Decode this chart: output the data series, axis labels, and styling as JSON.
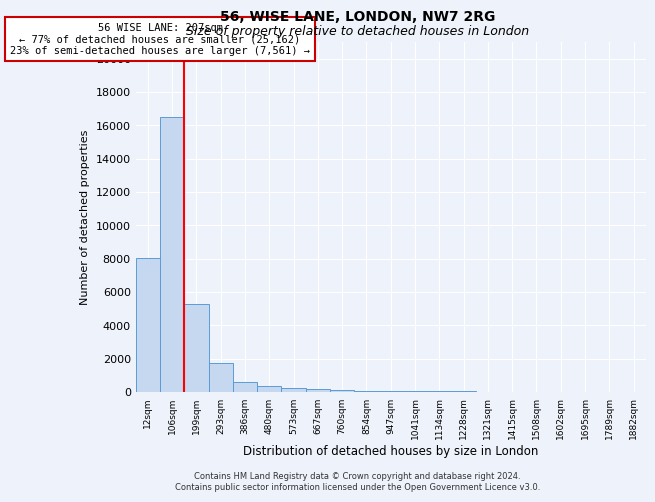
{
  "title1": "56, WISE LANE, LONDON, NW7 2RG",
  "title2": "Size of property relative to detached houses in London",
  "xlabel": "Distribution of detached houses by size in London",
  "ylabel": "Number of detached properties",
  "bin_labels": [
    "12sqm",
    "106sqm",
    "199sqm",
    "293sqm",
    "386sqm",
    "480sqm",
    "573sqm",
    "667sqm",
    "760sqm",
    "854sqm",
    "947sqm",
    "1041sqm",
    "1134sqm",
    "1228sqm",
    "1321sqm",
    "1415sqm",
    "1508sqm",
    "1602sqm",
    "1695sqm",
    "1789sqm",
    "1882sqm"
  ],
  "bar_heights": [
    8050,
    16500,
    5300,
    1750,
    620,
    340,
    230,
    170,
    120,
    90,
    70,
    55,
    45,
    35,
    28,
    22,
    18,
    14,
    11,
    9,
    7
  ],
  "bar_color": "#c5d8ef",
  "bar_edge_color": "#5b9bd5",
  "annotation_text": "56 WISE LANE: 207sqm\n← 77% of detached houses are smaller (25,162)\n23% of semi-detached houses are larger (7,561) →",
  "annotation_box_color": "#cc0000",
  "ylim": [
    0,
    21000
  ],
  "yticks": [
    0,
    2000,
    4000,
    6000,
    8000,
    10000,
    12000,
    14000,
    16000,
    18000,
    20000
  ],
  "footer1": "Contains HM Land Registry data © Crown copyright and database right 2024.",
  "footer2": "Contains public sector information licensed under the Open Government Licence v3.0.",
  "bg_color": "#eef2fa",
  "grid_color": "#ffffff",
  "title1_fontsize": 10,
  "title2_fontsize": 9
}
